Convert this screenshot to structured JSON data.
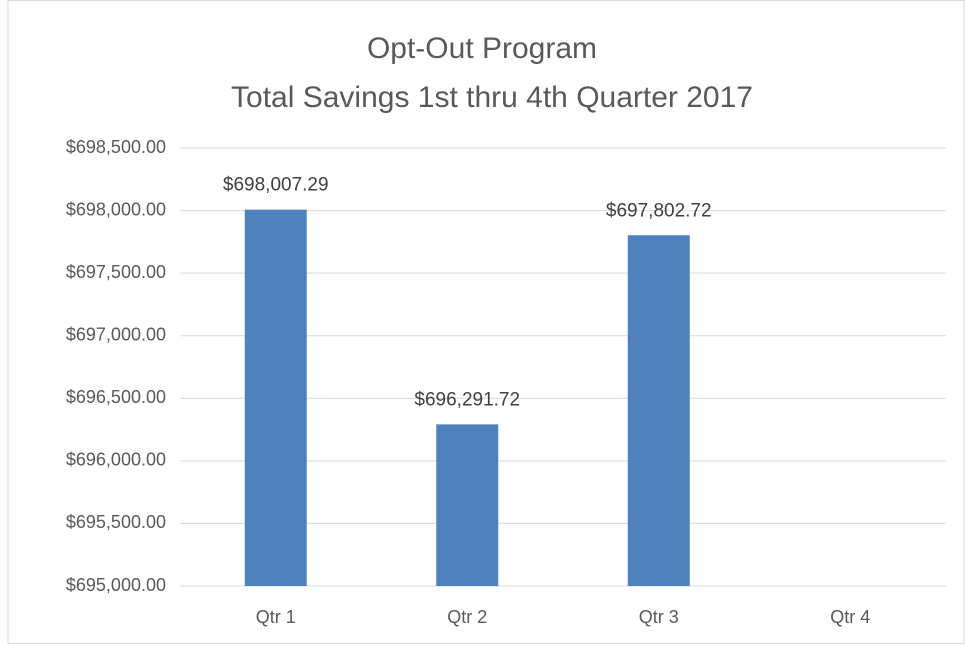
{
  "chart_data": {
    "type": "bar",
    "title": "Opt-Out Program",
    "subtitle": "Total Savings 1st thru 4th Quarter 2017",
    "categories": [
      "Qtr 1",
      "Qtr 2",
      "Qtr 3",
      "Qtr 4"
    ],
    "values": [
      698007.29,
      696291.72,
      697802.72,
      null
    ],
    "value_labels": [
      "$698,007.29",
      "$696,291.72",
      "$697,802.72",
      null
    ],
    "color": "#4f81bd",
    "ylim": [
      695000,
      698500
    ],
    "yticks": [
      {
        "value": 695000,
        "label": "$695,000.00"
      },
      {
        "value": 695500,
        "label": "$695,500.00"
      },
      {
        "value": 696000,
        "label": "$696,000.00"
      },
      {
        "value": 696500,
        "label": "$696,500.00"
      },
      {
        "value": 697000,
        "label": "$697,000.00"
      },
      {
        "value": 697500,
        "label": "$697,500.00"
      },
      {
        "value": 698000,
        "label": "$698,000.00"
      },
      {
        "value": 698500,
        "label": "$698,500.00"
      }
    ],
    "grid": true
  }
}
